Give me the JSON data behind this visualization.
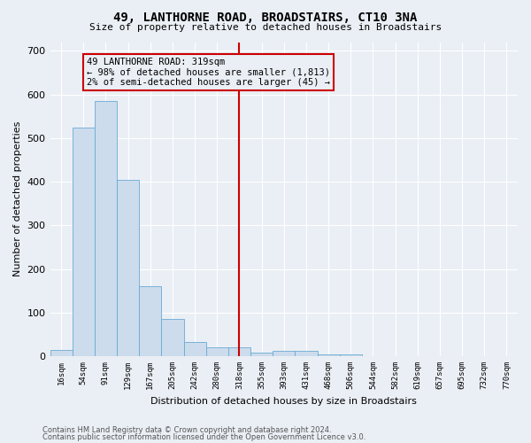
{
  "title": "49, LANTHORNE ROAD, BROADSTAIRS, CT10 3NA",
  "subtitle": "Size of property relative to detached houses in Broadstairs",
  "xlabel": "Distribution of detached houses by size in Broadstairs",
  "ylabel": "Number of detached properties",
  "bar_labels": [
    "16sqm",
    "54sqm",
    "91sqm",
    "129sqm",
    "167sqm",
    "205sqm",
    "242sqm",
    "280sqm",
    "318sqm",
    "355sqm",
    "393sqm",
    "431sqm",
    "468sqm",
    "506sqm",
    "544sqm",
    "582sqm",
    "619sqm",
    "657sqm",
    "695sqm",
    "732sqm",
    "770sqm"
  ],
  "bar_heights": [
    15,
    525,
    585,
    405,
    160,
    85,
    33,
    20,
    20,
    9,
    12,
    12,
    5,
    4,
    1,
    1,
    0,
    0,
    0,
    0,
    0
  ],
  "bar_color": "#ccdcec",
  "bar_edge_color": "#6aaad4",
  "property_line_index": 8,
  "annotation_line1": "49 LANTHORNE ROAD: 319sqm",
  "annotation_line2": "← 98% of detached houses are smaller (1,813)",
  "annotation_line3": "2% of semi-detached houses are larger (45) →",
  "annotation_box_edgecolor": "#cc0000",
  "vline_color": "#cc0000",
  "ylim": [
    0,
    720
  ],
  "yticks": [
    0,
    100,
    200,
    300,
    400,
    500,
    600,
    700
  ],
  "background_color": "#eaeff5",
  "grid_color": "#ffffff",
  "footer_line1": "Contains HM Land Registry data © Crown copyright and database right 2024.",
  "footer_line2": "Contains public sector information licensed under the Open Government Licence v3.0."
}
